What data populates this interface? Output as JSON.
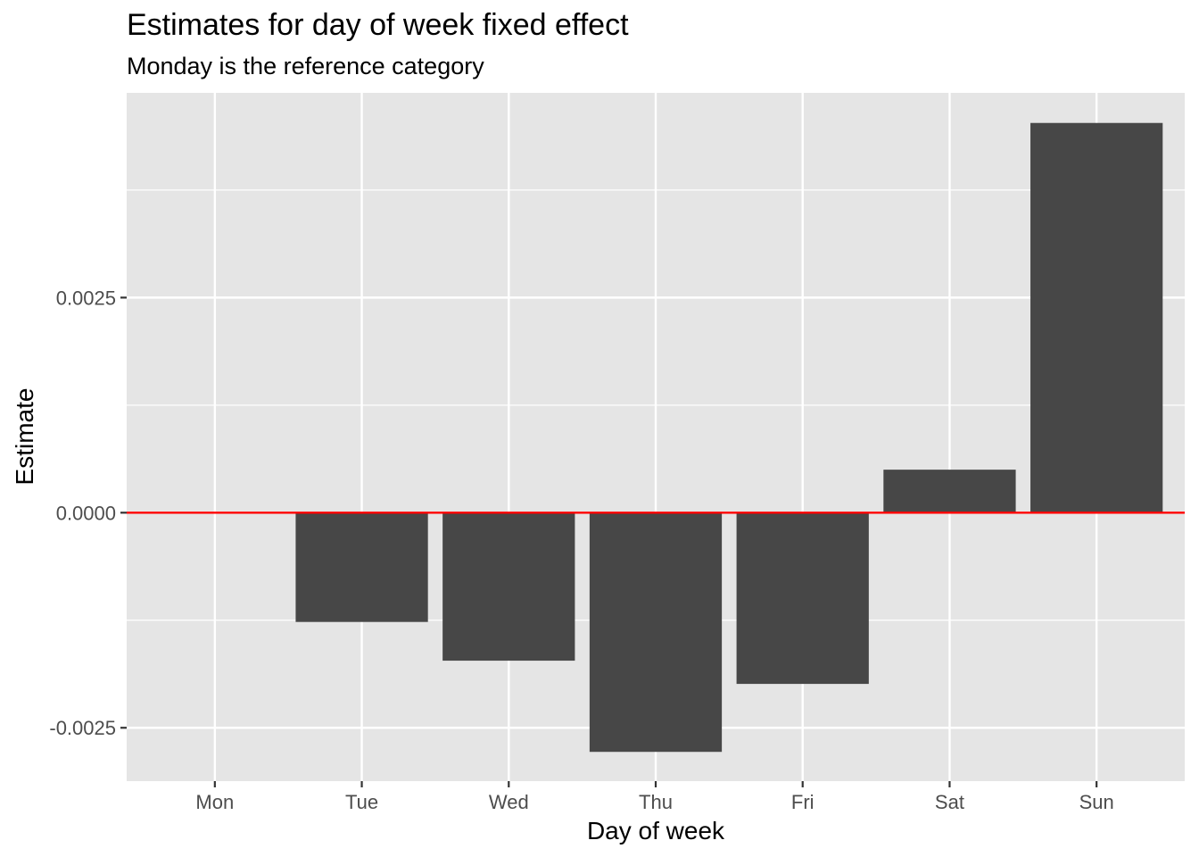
{
  "chart_data": {
    "type": "bar",
    "title": "Estimates for day of week fixed effect",
    "subtitle": "Monday is the reference category",
    "xlabel": "Day of week",
    "ylabel": "Estimate",
    "categories": [
      "Mon",
      "Tue",
      "Wed",
      "Thu",
      "Fri",
      "Sat",
      "Sun"
    ],
    "values": [
      0,
      -0.00127,
      -0.00172,
      -0.00278,
      -0.00199,
      0.0005,
      0.00453
    ],
    "ylim": [
      -0.00312,
      0.00488
    ],
    "yticks": [
      -0.0025,
      0.0,
      0.0025
    ],
    "ytick_labels": [
      "-0.0025",
      "0.0000",
      "0.0025"
    ],
    "reference_line": {
      "y": 0,
      "color": "#ff0000"
    },
    "bar_color": "#474747",
    "panel_color": "#e5e5e5",
    "grid": true
  }
}
